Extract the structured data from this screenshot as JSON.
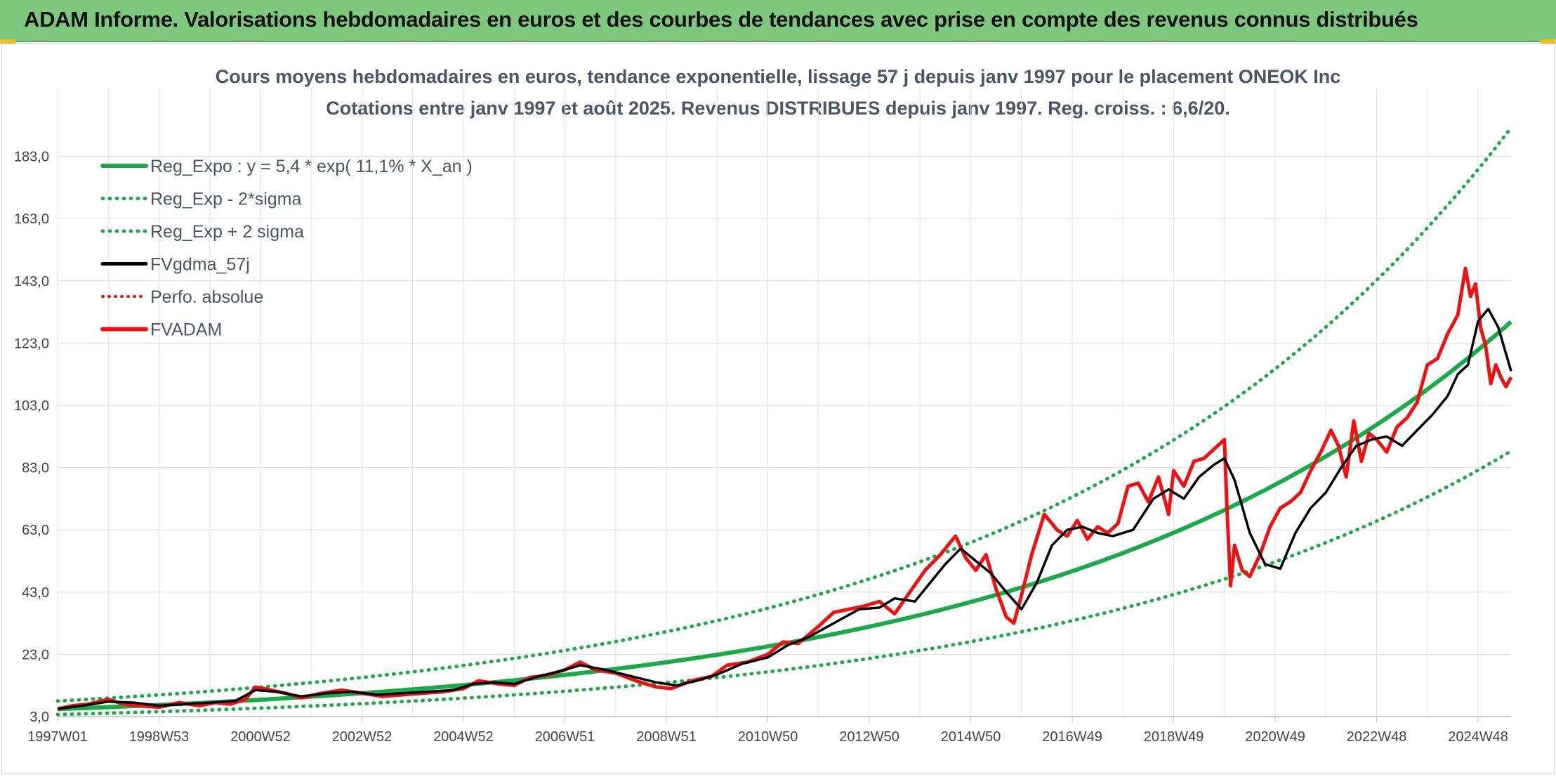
{
  "banner": {
    "title": "ADAM Informe. Valorisations hebdomadaires en euros et des courbes de tendances avec prise en compte des revenus connus distribués"
  },
  "colors": {
    "banner_bg": "#7ec87e",
    "reg_expo": "#1aab48",
    "fv_gdma": "#000000",
    "fvadam": "#ee1111",
    "perfo": "#ee1111"
  },
  "chart_data": {
    "type": "line",
    "title": "Cours moyens hebdomadaires en euros, tendance exponentielle, lissage 57 j depuis janv 1997 pour le placement ONEOK Inc",
    "subtitle": "Cotations entre janv 1997 et août 2025. Revenus DISTRIBUES depuis janv 1997. Reg. croiss. : 6,6/20.",
    "xlabel": "",
    "ylabel": "",
    "x_tick_labels": [
      "1997W01",
      "1998W53",
      "2000W52",
      "2002W52",
      "2004W52",
      "2006W51",
      "2008W51",
      "2010W50",
      "2012W50",
      "2014W50",
      "2016W49",
      "2018W49",
      "2020W49",
      "2022W48",
      "2024W48"
    ],
    "y_tick_labels": [
      "3,0",
      "23,0",
      "43,0",
      "63,0",
      "83,0",
      "103,0",
      "123,0",
      "143,0",
      "163,0",
      "183,0"
    ],
    "ylim": [
      3,
      196
    ],
    "xlim": [
      1997.0,
      2025.65
    ],
    "grid": true,
    "legend_position": "top-left",
    "reg_expo_params": {
      "a": 5.4,
      "rate": 0.111,
      "start_year": 1997.0
    },
    "band_factors": {
      "upper": 1.48,
      "lower": 0.68
    },
    "series": [
      {
        "name": "Reg_Expo : y = 5,4 * exp( 11,1% *  X_an )",
        "style": "solid-green"
      },
      {
        "name": "Reg_Exp - 2*sigma",
        "style": "dotted-green"
      },
      {
        "name": "Reg_Exp + 2 sigma",
        "style": "dotted-green"
      },
      {
        "name": "FVgdma_57j",
        "style": "solid-black",
        "x": [
          1997.0,
          1997.5,
          1998.0,
          1998.5,
          1999.0,
          1999.5,
          2000.0,
          2000.5,
          2000.9,
          2001.3,
          2001.8,
          2002.3,
          2002.8,
          2003.3,
          2003.8,
          2004.3,
          2004.8,
          2005.2,
          2005.6,
          2006.0,
          2006.5,
          2007.0,
          2007.3,
          2007.8,
          2008.3,
          2008.8,
          2009.2,
          2009.6,
          2010.0,
          2010.5,
          2011.0,
          2011.4,
          2011.8,
          2012.3,
          2012.8,
          2013.2,
          2013.5,
          2013.9,
          2014.2,
          2014.5,
          2014.8,
          2015.1,
          2015.4,
          2015.7,
          2016.0,
          2016.3,
          2016.6,
          2016.9,
          2017.2,
          2017.5,
          2017.8,
          2018.2,
          2018.6,
          2018.9,
          2019.2,
          2019.5,
          2019.8,
          2020.0,
          2020.2,
          2020.5,
          2020.8,
          2021.1,
          2021.4,
          2021.7,
          2022.0,
          2022.3,
          2022.6,
          2022.9,
          2023.2,
          2023.5,
          2023.8,
          2024.1,
          2024.4,
          2024.6,
          2024.8,
          2025.0,
          2025.2,
          2025.4,
          2025.65
        ],
        "y": [
          5.5,
          6.5,
          7.8,
          7.5,
          6.5,
          7.0,
          7.5,
          8.0,
          11.5,
          11.0,
          9.5,
          10.5,
          11.0,
          10.0,
          10.5,
          11.0,
          11.5,
          13.5,
          14.0,
          13.5,
          16.0,
          18.0,
          19.5,
          18.0,
          16.0,
          14.0,
          13.0,
          14.5,
          16.5,
          20.0,
          22.0,
          26.0,
          28.5,
          33.0,
          37.5,
          38.0,
          41.0,
          40.0,
          46.0,
          52.0,
          57.0,
          53.0,
          49.0,
          43.0,
          37.5,
          46.0,
          58.0,
          63.0,
          64.0,
          62.0,
          61.0,
          63.0,
          73.0,
          76.0,
          73.0,
          80.0,
          84.0,
          86.0,
          79.0,
          62.0,
          52.0,
          50.5,
          62.0,
          70.0,
          75.0,
          83.0,
          90.0,
          92.0,
          93.0,
          90.0,
          95.0,
          100.0,
          106.0,
          113.0,
          116.0,
          130.0,
          134.0,
          128.0,
          114.0
        ]
      },
      {
        "name": "Perfo. absolue",
        "style": "dotted-red"
      },
      {
        "name": "FVADAM",
        "style": "solid-red",
        "x": [
          1997.0,
          1997.3,
          1997.6,
          1998.0,
          1998.3,
          1998.6,
          1999.0,
          1999.4,
          1999.8,
          2000.1,
          2000.4,
          2000.7,
          2000.9,
          2001.2,
          2001.5,
          2001.8,
          2002.2,
          2002.6,
          2003.0,
          2003.4,
          2003.8,
          2004.2,
          2004.6,
          2005.0,
          2005.3,
          2005.7,
          2006.0,
          2006.3,
          2006.7,
          2007.0,
          2007.3,
          2007.6,
          2008.0,
          2008.4,
          2008.8,
          2009.1,
          2009.5,
          2009.9,
          2010.2,
          2010.6,
          2011.0,
          2011.3,
          2011.6,
          2012.0,
          2012.3,
          2012.6,
          2012.9,
          2013.2,
          2013.5,
          2013.8,
          2014.1,
          2014.4,
          2014.7,
          2014.9,
          2015.1,
          2015.3,
          2015.5,
          2015.7,
          2015.85,
          2016.0,
          2016.2,
          2016.45,
          2016.7,
          2016.9,
          2017.1,
          2017.3,
          2017.5,
          2017.7,
          2017.9,
          2018.1,
          2018.3,
          2018.5,
          2018.7,
          2018.9,
          2019.0,
          2019.2,
          2019.4,
          2019.6,
          2019.8,
          2020.0,
          2020.05,
          2020.12,
          2020.2,
          2020.35,
          2020.5,
          2020.7,
          2020.9,
          2021.1,
          2021.3,
          2021.5,
          2021.7,
          2021.9,
          2022.1,
          2022.25,
          2022.4,
          2022.55,
          2022.7,
          2022.85,
          2023.0,
          2023.2,
          2023.4,
          2023.6,
          2023.8,
          2024.0,
          2024.2,
          2024.4,
          2024.6,
          2024.75,
          2024.85,
          2024.95,
          2025.05,
          2025.15,
          2025.25,
          2025.35,
          2025.45,
          2025.55,
          2025.65
        ],
        "y": [
          5.5,
          6.5,
          7.0,
          8.5,
          7.0,
          6.5,
          6.0,
          7.5,
          6.5,
          7.5,
          7.0,
          8.5,
          12.5,
          11.5,
          10.5,
          9.0,
          10.5,
          11.5,
          10.5,
          9.5,
          10.0,
          10.5,
          11.0,
          12.0,
          14.5,
          13.5,
          13.0,
          15.5,
          16.5,
          18.0,
          20.5,
          18.0,
          17.0,
          14.5,
          12.5,
          12.0,
          14.5,
          16.0,
          19.5,
          20.5,
          23.0,
          27.0,
          26.5,
          32.0,
          36.5,
          37.5,
          38.5,
          40.0,
          36.0,
          43.0,
          50.0,
          55.0,
          61.0,
          54.0,
          50.0,
          55.0,
          44.0,
          35.0,
          33.0,
          42.0,
          55.0,
          68.0,
          63.0,
          61.0,
          66.0,
          60.0,
          64.0,
          62.0,
          65.0,
          77.0,
          78.0,
          72.0,
          80.0,
          68.0,
          82.0,
          77.0,
          85.0,
          86.0,
          89.0,
          92.0,
          70.0,
          45.0,
          58.0,
          50.0,
          48.0,
          55.0,
          64.0,
          70.0,
          72.0,
          75.0,
          82.0,
          88.0,
          95.0,
          90.0,
          80.0,
          98.0,
          85.0,
          94.0,
          92.0,
          88.0,
          96.0,
          99.0,
          104.0,
          116.0,
          118.0,
          126.0,
          132.0,
          147.0,
          138.0,
          142.0,
          128.0,
          122.0,
          110.0,
          116.0,
          112.0,
          109.0,
          112.0
        ]
      }
    ]
  }
}
